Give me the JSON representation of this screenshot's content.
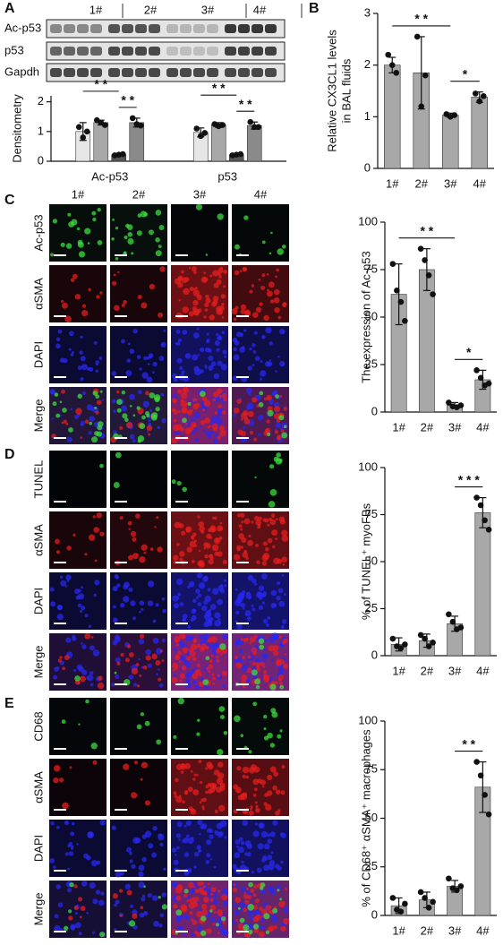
{
  "panel_letters": [
    "A",
    "B",
    "C",
    "D",
    "E"
  ],
  "blot": {
    "lanes": [
      "1#",
      "2#",
      "3#",
      "4#"
    ],
    "rows": [
      "Ac-p53",
      "p53",
      "Gapdh"
    ]
  },
  "images": [
    {
      "columns": [
        "1#",
        "2#",
        "3#",
        "4#"
      ],
      "rows": [
        {
          "label": "Ac-p53",
          "color": "#2fb52f"
        },
        {
          "label": "αSMA",
          "color": "#d8231f"
        },
        {
          "label": "DAPI",
          "color": "#2525d8"
        },
        {
          "label": "Merge",
          "color": "#222222"
        }
      ]
    },
    {
      "rows": [
        {
          "label": "TUNEL",
          "color": "#2fb52f"
        },
        {
          "label": "αSMA",
          "color": "#d8231f"
        },
        {
          "label": "DAPI",
          "color": "#2525d8"
        },
        {
          "label": "Merge",
          "color": "#222222"
        }
      ]
    },
    {
      "rows": [
        {
          "label": "CD68",
          "color": "#2fb52f"
        },
        {
          "label": "αSMA",
          "color": "#d8231f"
        },
        {
          "label": "DAPI",
          "color": "#2525d8"
        },
        {
          "label": "Merge",
          "color": "#222222"
        }
      ]
    }
  ],
  "chart_data": [
    {
      "type": "bar",
      "ylabel": [
        "Densitometry"
      ],
      "categories": [
        "Ac-p53",
        "p53"
      ],
      "series": [
        {
          "color": "#e6e6e6",
          "values": [
            1.0,
            0.97
          ],
          "errors": [
            0.3,
            0.15
          ],
          "points": [
            [
              1.15,
              0.8,
              1.0
            ],
            [
              1.1,
              0.85,
              0.95
            ]
          ]
        },
        {
          "color": "#a8a8a8",
          "values": [
            1.3,
            1.22
          ],
          "errors": [
            0.08,
            0.08
          ],
          "points": [
            [
              1.38,
              1.3,
              1.22
            ],
            [
              1.25,
              1.18,
              1.22
            ]
          ]
        },
        {
          "color": "#555555",
          "values": [
            0.22,
            0.22
          ],
          "errors": [
            0.03,
            0.03
          ],
          "points": [
            [
              0.2,
              0.22,
              0.24
            ],
            [
              0.2,
              0.22,
              0.24
            ]
          ]
        },
        {
          "color": "#8a8a8a",
          "values": [
            1.3,
            1.2
          ],
          "errors": [
            0.15,
            0.12
          ],
          "points": [
            [
              1.45,
              1.25,
              1.2
            ],
            [
              1.32,
              1.15,
              1.15
            ]
          ]
        }
      ],
      "ylim": [
        0,
        2.2
      ],
      "yticks": [
        0,
        1,
        2
      ],
      "annotations": [
        {
          "text": "* *",
          "category": 0,
          "between": [
            0,
            2
          ]
        },
        {
          "text": "* *",
          "category": 0,
          "between": [
            2,
            3
          ]
        },
        {
          "text": "* *",
          "category": 1,
          "between": [
            0,
            2
          ]
        },
        {
          "text": "* *",
          "category": 1,
          "between": [
            2,
            3
          ]
        }
      ]
    },
    {
      "type": "bar",
      "ylabel": [
        "Relative CX3CL1 levels",
        "in BAL fluids"
      ],
      "categories": [
        "1#",
        "2#",
        "3#",
        "4#"
      ],
      "color": "#a8a8a8",
      "values": [
        2.0,
        1.85,
        1.03,
        1.38
      ],
      "errors": [
        0.15,
        0.7,
        0.04,
        0.1
      ],
      "points": [
        [
          2.2,
          2.0,
          1.85
        ],
        [
          2.55,
          1.2,
          1.8
        ],
        [
          1.05,
          1.0,
          1.03
        ],
        [
          1.45,
          1.3,
          1.4
        ]
      ],
      "ylim": [
        0,
        3
      ],
      "yticks": [
        0,
        1,
        2,
        3
      ],
      "annotations": [
        {
          "text": "* *",
          "between": [
            0,
            2
          ]
        },
        {
          "text": "*",
          "between": [
            2,
            3
          ]
        }
      ]
    },
    {
      "type": "bar",
      "ylabel": [
        "The expression of Ac-p53"
      ],
      "categories": [
        "1#",
        "2#",
        "3#",
        "4#"
      ],
      "color": "#a8a8a8",
      "values": [
        62,
        75,
        3.5,
        17
      ],
      "errors": [
        16,
        11,
        1.5,
        5
      ],
      "points": [
        [
          78,
          64,
          58,
          48
        ],
        [
          86,
          80,
          72,
          62
        ],
        [
          5,
          3,
          2.5,
          3.5
        ],
        [
          22,
          18,
          14,
          15
        ]
      ],
      "ylim": [
        0,
        100
      ],
      "yticks": [
        0,
        25,
        50,
        75,
        100
      ],
      "annotations": [
        {
          "text": "* *",
          "between": [
            0,
            2
          ]
        },
        {
          "text": "*",
          "between": [
            2,
            3
          ]
        }
      ]
    },
    {
      "type": "bar",
      "ylabel": [
        "% of TUNEL⁺ myoFBs"
      ],
      "categories": [
        "1#",
        "2#",
        "3#",
        "4#"
      ],
      "color": "#a8a8a8",
      "values": [
        6,
        8,
        17,
        76
      ],
      "errors": [
        3.5,
        3.5,
        4,
        8
      ],
      "points": [
        [
          9,
          5,
          4,
          6
        ],
        [
          11,
          9,
          5,
          7
        ],
        [
          22,
          18,
          14,
          15
        ],
        [
          84,
          80,
          72,
          67
        ]
      ],
      "ylim": [
        0,
        100
      ],
      "yticks": [
        0,
        25,
        50,
        75,
        100
      ],
      "annotations": [
        {
          "text": "* * *",
          "between": [
            2,
            3
          ]
        }
      ]
    },
    {
      "type": "bar",
      "ylabel": [
        "% of CD68⁺ αSMA⁺ macrophages"
      ],
      "categories": [
        "1#",
        "2#",
        "3#",
        "4#"
      ],
      "color": "#a8a8a8",
      "values": [
        5,
        8,
        15,
        66
      ],
      "errors": [
        4,
        4,
        3,
        13
      ],
      "points": [
        [
          9,
          3,
          2,
          6
        ],
        [
          12,
          9,
          4,
          7
        ],
        [
          19,
          14,
          13,
          15
        ],
        [
          79,
          72,
          62,
          52
        ]
      ],
      "ylim": [
        0,
        100
      ],
      "yticks": [
        0,
        25,
        50,
        75,
        100
      ],
      "annotations": [
        {
          "text": "* *",
          "between": [
            2,
            3
          ]
        }
      ]
    }
  ]
}
